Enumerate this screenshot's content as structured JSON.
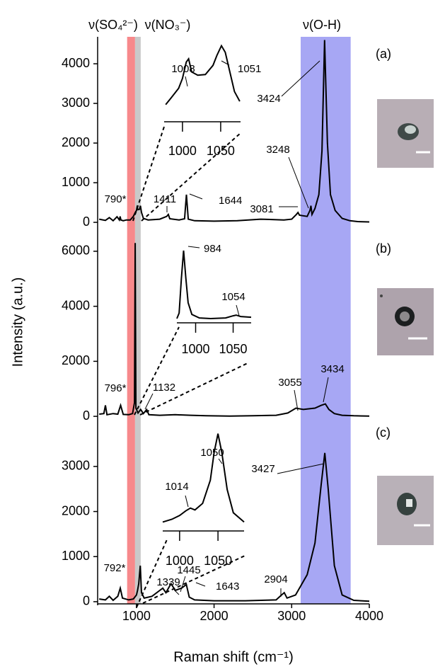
{
  "bands": [
    {
      "label": "ν(SO₄²⁻)",
      "range": [
        880,
        982
      ],
      "color": "#f7898b"
    },
    {
      "label": "ν(NO₃⁻)",
      "range": [
        982,
        1055
      ],
      "color": "#c9c9c9"
    },
    {
      "label": "ν(O-H)",
      "range": [
        3116,
        3760
      ],
      "color": "#a7a7f4"
    }
  ],
  "chart_data": [
    {
      "type": "line",
      "panel_label": "(a)",
      "xlim": [
        500,
        4000
      ],
      "ylim": [
        -70,
        4680
      ],
      "yticks": [
        0,
        1000,
        2000,
        3000,
        4000
      ],
      "x": [
        520,
        600,
        650,
        700,
        750,
        780,
        790,
        800,
        830,
        870,
        920,
        960,
        985,
        1000,
        1008,
        1020,
        1040,
        1051,
        1065,
        1090,
        1150,
        1300,
        1390,
        1411,
        1430,
        1550,
        1620,
        1644,
        1668,
        1750,
        2000,
        2300,
        2600,
        2900,
        3000,
        3060,
        3081,
        3100,
        3200,
        3235,
        3248,
        3262,
        3300,
        3350,
        3390,
        3424,
        3460,
        3500,
        3560,
        3650,
        3750,
        3850,
        4000
      ],
      "series": [
        {
          "color": "#000000",
          "values": [
            80,
            50,
            120,
            40,
            140,
            60,
            150,
            60,
            40,
            60,
            60,
            150,
            250,
            300,
            380,
            320,
            330,
            420,
            250,
            100,
            60,
            80,
            150,
            200,
            90,
            60,
            90,
            700,
            80,
            40,
            30,
            40,
            80,
            60,
            80,
            200,
            250,
            180,
            150,
            300,
            420,
            200,
            350,
            700,
            1800,
            4600,
            2000,
            700,
            300,
            100,
            40,
            20,
            10
          ]
        }
      ],
      "peak_labels": [
        "790*",
        "1411",
        "1644",
        "1008",
        "1051",
        "3424",
        "3248",
        "3081"
      ],
      "inset": {
        "xlim": [
          976,
          1076
        ],
        "ylim": [
          0,
          1.05
        ],
        "xticks": [
          1000,
          1050
        ],
        "x": [
          978,
          985,
          995,
          1000,
          1005,
          1008,
          1012,
          1020,
          1030,
          1040,
          1045,
          1051,
          1056,
          1062,
          1068,
          1075
        ],
        "values": [
          0.1,
          0.2,
          0.35,
          0.5,
          0.75,
          0.8,
          0.6,
          0.55,
          0.56,
          0.7,
          0.85,
          1.0,
          0.9,
          0.6,
          0.3,
          0.15
        ]
      }
    },
    {
      "type": "line",
      "panel_label": "(b)",
      "ylabel": "Intensity (a.u.)",
      "xlim": [
        500,
        4000
      ],
      "ylim": [
        -100,
        6950
      ],
      "yticks": [
        0,
        2000,
        4000,
        6000
      ],
      "x": [
        520,
        580,
        600,
        620,
        700,
        760,
        796,
        830,
        900,
        950,
        975,
        984,
        993,
        1020,
        1054,
        1090,
        1132,
        1160,
        1300,
        1500,
        1700,
        1900,
        2200,
        2500,
        2800,
        2950,
        3055,
        3150,
        3300,
        3380,
        3434,
        3480,
        3550,
        3650,
        3800,
        4000
      ],
      "series": [
        {
          "color": "#000000",
          "values": [
            80,
            100,
            400,
            60,
            100,
            80,
            400,
            70,
            60,
            100,
            500,
            6300,
            300,
            120,
            250,
            100,
            250,
            60,
            40,
            60,
            40,
            20,
            10,
            20,
            40,
            120,
            300,
            250,
            300,
            400,
            450,
            250,
            100,
            40,
            20,
            10
          ]
        }
      ],
      "peak_labels": [
        "984",
        "1054",
        "796*",
        "1132",
        "3055",
        "3434"
      ],
      "inset": {
        "xlim": [
          975,
          1074
        ],
        "ylim": [
          0,
          1.05
        ],
        "xticks": [
          1000,
          1050
        ],
        "x": [
          975,
          978,
          981,
          984,
          987,
          990,
          995,
          1005,
          1020,
          1040,
          1050,
          1054,
          1060,
          1074
        ],
        "values": [
          0.02,
          0.1,
          0.6,
          1.0,
          0.6,
          0.25,
          0.08,
          0.03,
          0.02,
          0.03,
          0.06,
          0.07,
          0.05,
          0.04
        ]
      }
    },
    {
      "type": "line",
      "panel_label": "(c)",
      "xlabel": "Raman shift (cm⁻¹)",
      "xlim": [
        500,
        4000
      ],
      "ylim": [
        -80,
        4050
      ],
      "yticks": [
        0,
        1000,
        2000,
        3000
      ],
      "xticks": [
        1000,
        2000,
        3000,
        4000
      ],
      "x": [
        520,
        600,
        650,
        700,
        760,
        792,
        820,
        900,
        960,
        1000,
        1014,
        1030,
        1050,
        1065,
        1100,
        1200,
        1300,
        1339,
        1380,
        1445,
        1500,
        1580,
        1643,
        1680,
        1750,
        2000,
        2400,
        2800,
        2870,
        2904,
        2940,
        3050,
        3200,
        3300,
        3380,
        3427,
        3470,
        3550,
        3650,
        3800,
        4000
      ],
      "series": [
        {
          "color": "#000000",
          "values": [
            60,
            40,
            120,
            30,
            120,
            300,
            80,
            40,
            60,
            150,
            250,
            400,
            800,
            200,
            80,
            120,
            250,
            300,
            200,
            400,
            250,
            300,
            380,
            100,
            40,
            20,
            20,
            40,
            150,
            200,
            80,
            150,
            600,
            1300,
            2600,
            3300,
            2500,
            800,
            150,
            30,
            10
          ]
        }
      ],
      "peak_labels": [
        "1050",
        "1014",
        "792*",
        "1339",
        "1445",
        "1643",
        "2904",
        "3427"
      ],
      "inset": {
        "xlim": [
          978,
          1084
        ],
        "ylim": [
          0,
          1.05
        ],
        "xticks": [
          1000,
          1050
        ],
        "x": [
          978,
          990,
          1000,
          1008,
          1014,
          1020,
          1030,
          1040,
          1045,
          1050,
          1055,
          1062,
          1070,
          1084
        ],
        "values": [
          0.05,
          0.08,
          0.12,
          0.17,
          0.2,
          0.18,
          0.25,
          0.5,
          0.8,
          1.0,
          0.8,
          0.4,
          0.15,
          0.05
        ]
      }
    }
  ]
}
